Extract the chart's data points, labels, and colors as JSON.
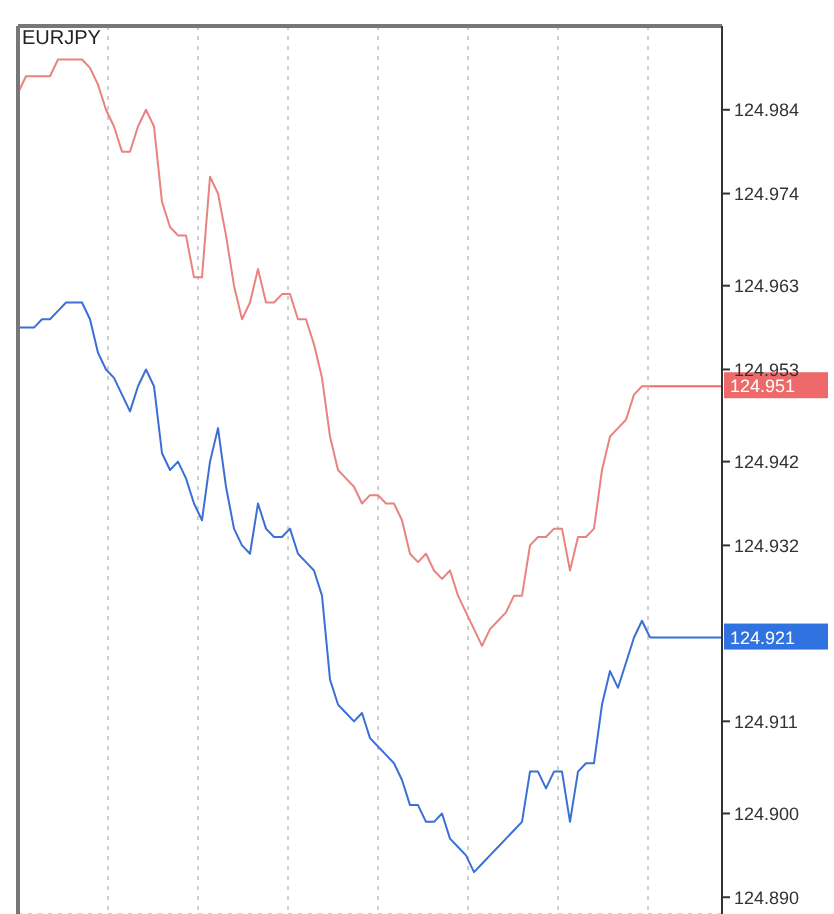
{
  "chart_data": {
    "type": "line",
    "title": "EURJPY",
    "categories": [
      null,
      null,
      null,
      null,
      null,
      null,
      null,
      null,
      null,
      null,
      null,
      null,
      null,
      null,
      null,
      null,
      null,
      null,
      null,
      null,
      null,
      null,
      null,
      null,
      null,
      null,
      null,
      null,
      null,
      null,
      null,
      null,
      null,
      null,
      null,
      null,
      null,
      null,
      null,
      null,
      null,
      null,
      null,
      null,
      null,
      null,
      null,
      null,
      null,
      null,
      null,
      null,
      null,
      null,
      null,
      null,
      null,
      null,
      null,
      null,
      null,
      null,
      null,
      null,
      null,
      null,
      null,
      null,
      null,
      null,
      null,
      null,
      null,
      null,
      null,
      null,
      null,
      null,
      null,
      null,
      null,
      null,
      null,
      null,
      null,
      null,
      null,
      null,
      null
    ],
    "series": [
      {
        "color": "#e8837f",
        "values": [
          124.986,
          124.988,
          124.988,
          124.988,
          124.988,
          124.99,
          124.99,
          124.99,
          124.99,
          124.989,
          124.987,
          124.984,
          124.982,
          124.979,
          124.979,
          124.982,
          124.984,
          124.982,
          124.973,
          124.97,
          124.969,
          124.969,
          124.964,
          124.964,
          124.976,
          124.974,
          124.969,
          124.963,
          124.959,
          124.961,
          124.965,
          124.961,
          124.961,
          124.962,
          124.962,
          124.959,
          124.959,
          124.956,
          124.952,
          124.945,
          124.941,
          124.94,
          124.939,
          124.937,
          124.938,
          124.938,
          124.937,
          124.937,
          124.935,
          124.931,
          124.93,
          124.931,
          124.929,
          124.928,
          124.929,
          124.926,
          124.924,
          124.922,
          124.92,
          124.922,
          124.923,
          124.924,
          124.926,
          124.926,
          124.932,
          124.933,
          124.933,
          124.934,
          124.934,
          124.929,
          124.933,
          124.933,
          124.934,
          124.941,
          124.945,
          124.946,
          124.947,
          124.95,
          124.951,
          124.951,
          null,
          null,
          null,
          null,
          null,
          null,
          null,
          null,
          null
        ]
      },
      {
        "color": "#3b6fd6",
        "values": [
          124.958,
          124.958,
          124.958,
          124.959,
          124.959,
          124.96,
          124.961,
          124.961,
          124.961,
          124.959,
          124.955,
          124.953,
          124.952,
          124.95,
          124.948,
          124.951,
          124.953,
          124.951,
          124.943,
          124.941,
          124.942,
          124.94,
          124.937,
          124.935,
          124.942,
          124.946,
          124.939,
          124.934,
          124.932,
          124.931,
          124.937,
          124.934,
          124.933,
          124.933,
          124.934,
          124.931,
          124.93,
          124.929,
          124.926,
          124.916,
          124.913,
          124.912,
          124.911,
          124.912,
          124.909,
          124.908,
          124.907,
          124.906,
          124.904,
          124.901,
          124.901,
          124.899,
          124.899,
          124.9,
          124.897,
          124.896,
          124.895,
          124.893,
          124.894,
          124.895,
          124.896,
          124.897,
          124.898,
          124.899,
          124.905,
          124.905,
          124.903,
          124.905,
          124.905,
          124.899,
          124.905,
          124.906,
          124.906,
          124.913,
          124.917,
          124.915,
          124.918,
          124.921,
          124.923,
          124.921,
          null,
          null,
          null,
          null,
          null,
          null,
          null,
          null,
          null
        ]
      }
    ],
    "ylim": [
      124.888,
      124.994
    ],
    "yticks": [
      {
        "value": 124.984,
        "label": "124.984"
      },
      {
        "value": 124.974,
        "label": "124.974"
      },
      {
        "value": 124.963,
        "label": "124.963"
      },
      {
        "value": 124.953,
        "label": "124.953"
      },
      {
        "value": 124.942,
        "label": "124.942"
      },
      {
        "value": 124.932,
        "label": "124.932"
      },
      {
        "value": 124.911,
        "label": "124.911"
      },
      {
        "value": 124.9,
        "label": "124.900"
      },
      {
        "value": 124.89,
        "label": "124.890"
      }
    ],
    "ref_lines": [
      {
        "axis": "y",
        "value": 124.951,
        "label": "124.951",
        "color": "#ee6a6a"
      },
      {
        "axis": "y",
        "value": 124.921,
        "label": "124.921",
        "color": "#2f72e0"
      }
    ],
    "tick_labels": "y",
    "grid": true,
    "marker": "none",
    "line_style": "solid"
  }
}
